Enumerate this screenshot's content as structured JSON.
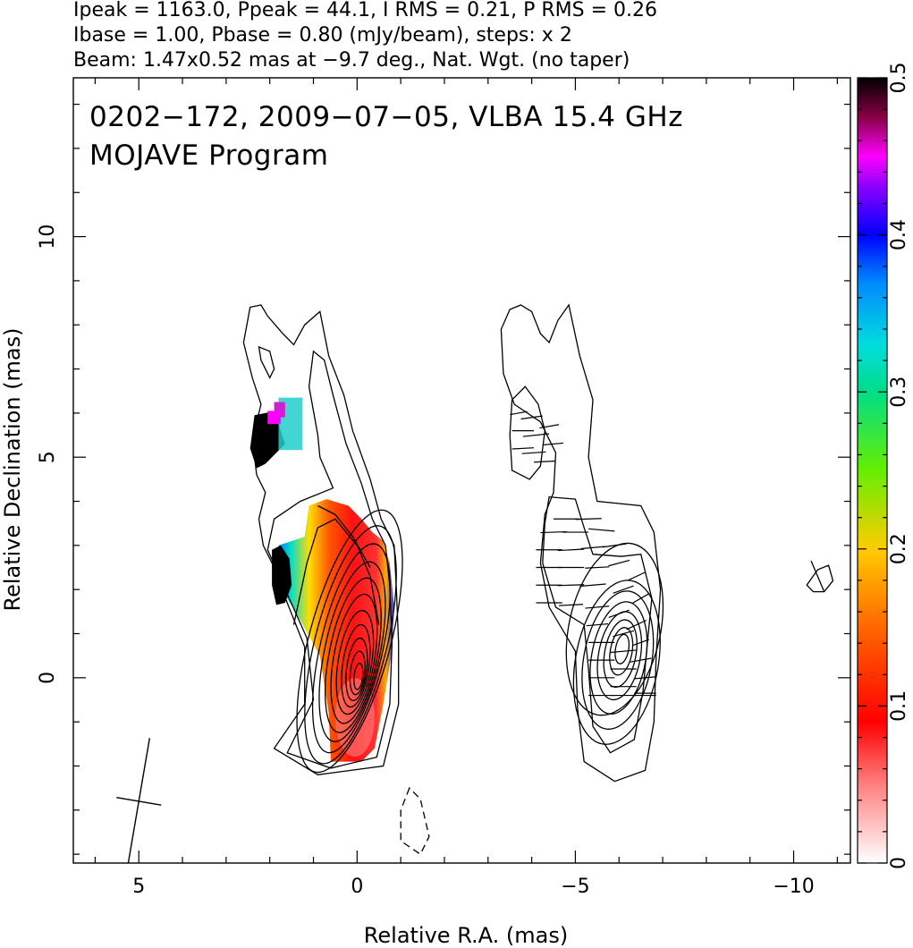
{
  "header": {
    "line1": "Ipeak = 1163.0, Ppeak = 44.1, I RMS = 0.21, P RMS = 0.26",
    "line2": "Ibase = 1.00, Pbase = 0.80 (mJy/beam), steps: x 2",
    "line3": "Beam: 1.47x0.52 mas at −9.7 deg., Nat. Wgt. (no taper)"
  },
  "chart_data": {
    "type": "contour",
    "annotation_line1": "0202−172, 2009−07−05, VLBA 15.4 GHz",
    "annotation_line2": "MOJAVE Program",
    "xlabel": "Relative R.A. (mas)",
    "ylabel": "Relative Declination (mas)",
    "xlim": [
      6.5,
      -11.3
    ],
    "ylim": [
      -4.2,
      13.6
    ],
    "x_ticks": [
      5,
      0,
      -5,
      -10
    ],
    "x_tick_labels": [
      "5",
      "0",
      "−5",
      "−10"
    ],
    "y_ticks": [
      0,
      5,
      10
    ],
    "y_tick_labels": [
      "0",
      "5",
      "10"
    ],
    "colorbar": {
      "vmin": 0,
      "vmax": 0.5,
      "ticks": [
        0,
        0.1,
        0.2,
        0.3,
        0.4,
        0.5
      ],
      "tick_labels": [
        "0",
        "0.1",
        "0.2",
        "0.3",
        "0.4",
        "0.5"
      ]
    },
    "image_center": [
      0,
      0
    ],
    "polarization_image_center": [
      -5.9,
      0.3
    ],
    "beam": {
      "major_mas": 1.47,
      "minor_mas": 0.52,
      "pa_deg": -9.7,
      "center": [
        5,
        -2.8
      ]
    },
    "contour_base_mJy": 1.0,
    "contour_step_factor": 2,
    "colors": {
      "high_fraction": "#000000",
      "low_fraction": "#ffffff",
      "mid": "#ff0000"
    }
  }
}
